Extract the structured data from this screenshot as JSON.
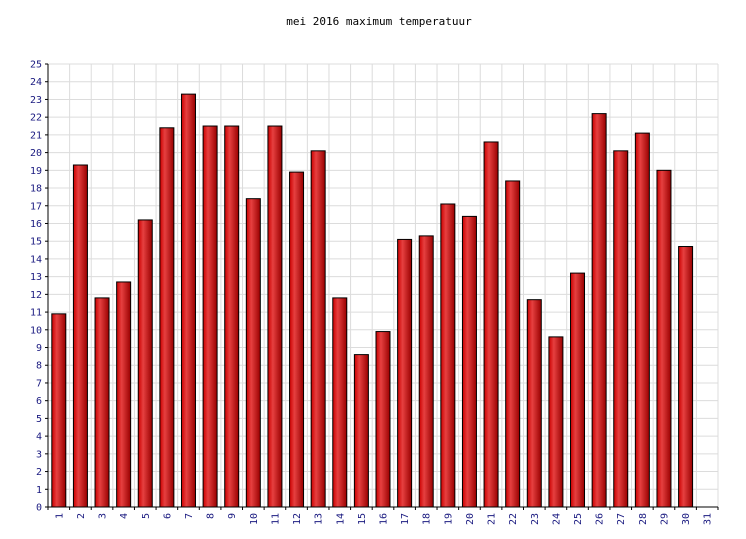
{
  "chart_data": {
    "type": "bar",
    "title": "mei 2016 maximum temperatuur",
    "xlabel": "",
    "ylabel": "",
    "ylim": [
      0,
      25
    ],
    "yticks": [
      0,
      1,
      2,
      3,
      4,
      5,
      6,
      7,
      8,
      9,
      10,
      11,
      12,
      13,
      14,
      15,
      16,
      17,
      18,
      19,
      20,
      21,
      22,
      23,
      24,
      25
    ],
    "grid": true,
    "legend": "none",
    "categories": [
      "1",
      "2",
      "3",
      "4",
      "5",
      "6",
      "7",
      "8",
      "9",
      "10",
      "11",
      "12",
      "13",
      "14",
      "15",
      "16",
      "17",
      "18",
      "19",
      "20",
      "21",
      "22",
      "23",
      "24",
      "25",
      "26",
      "27",
      "28",
      "29",
      "30",
      "31"
    ],
    "values": [
      10.9,
      19.3,
      11.8,
      12.7,
      16.2,
      21.4,
      23.3,
      21.5,
      21.5,
      17.4,
      21.5,
      18.9,
      20.1,
      11.8,
      8.6,
      9.9,
      15.1,
      15.3,
      17.1,
      16.4,
      20.6,
      18.4,
      11.7,
      9.6,
      13.2,
      22.2,
      20.1,
      21.1,
      19.0,
      14.7,
      null
    ],
    "colors": {
      "bar": "#cc0000",
      "bar_highlight": "#e64040",
      "tick_text": "#1a1a80",
      "grid": "#dcdcdc"
    }
  }
}
